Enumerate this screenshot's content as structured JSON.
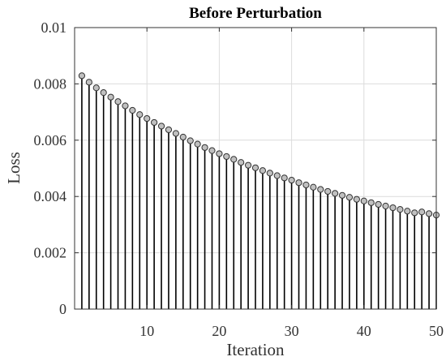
{
  "chart_data": {
    "type": "stem",
    "title": "Before Perturbation",
    "xlabel": "Iteration",
    "ylabel": "Loss",
    "xlim": [
      0,
      50
    ],
    "ylim": [
      0,
      0.01
    ],
    "xticks": [
      10,
      20,
      30,
      40,
      50
    ],
    "yticks": [
      0,
      0.002,
      0.004,
      0.006,
      0.008,
      0.01
    ],
    "ytick_labels": [
      "0",
      "0.002",
      "0.004",
      "0.006",
      "0.008",
      "0.01"
    ],
    "grid": true,
    "marker_color": "#c0c0c0",
    "stem_color": "#000000",
    "x": [
      1,
      2,
      3,
      4,
      5,
      6,
      7,
      8,
      9,
      10,
      11,
      12,
      13,
      14,
      15,
      16,
      17,
      18,
      19,
      20,
      21,
      22,
      23,
      24,
      25,
      26,
      27,
      28,
      29,
      30,
      31,
      32,
      33,
      34,
      35,
      36,
      37,
      38,
      39,
      40,
      41,
      42,
      43,
      44,
      45,
      46,
      47,
      48,
      49,
      50
    ],
    "values": [
      0.00829,
      0.00806,
      0.00786,
      0.00769,
      0.00753,
      0.00737,
      0.00722,
      0.00706,
      0.00691,
      0.00677,
      0.00663,
      0.0065,
      0.00637,
      0.00624,
      0.00611,
      0.00598,
      0.00586,
      0.00574,
      0.00563,
      0.00552,
      0.00542,
      0.00532,
      0.00521,
      0.00511,
      0.00502,
      0.00492,
      0.00483,
      0.00474,
      0.00466,
      0.00458,
      0.00449,
      0.00441,
      0.00433,
      0.00425,
      0.00418,
      0.00411,
      0.00404,
      0.00397,
      0.0039,
      0.00384,
      0.00378,
      0.00372,
      0.00366,
      0.0036,
      0.00354,
      0.00348,
      0.00342,
      0.00345,
      0.00339,
      0.00334
    ]
  }
}
